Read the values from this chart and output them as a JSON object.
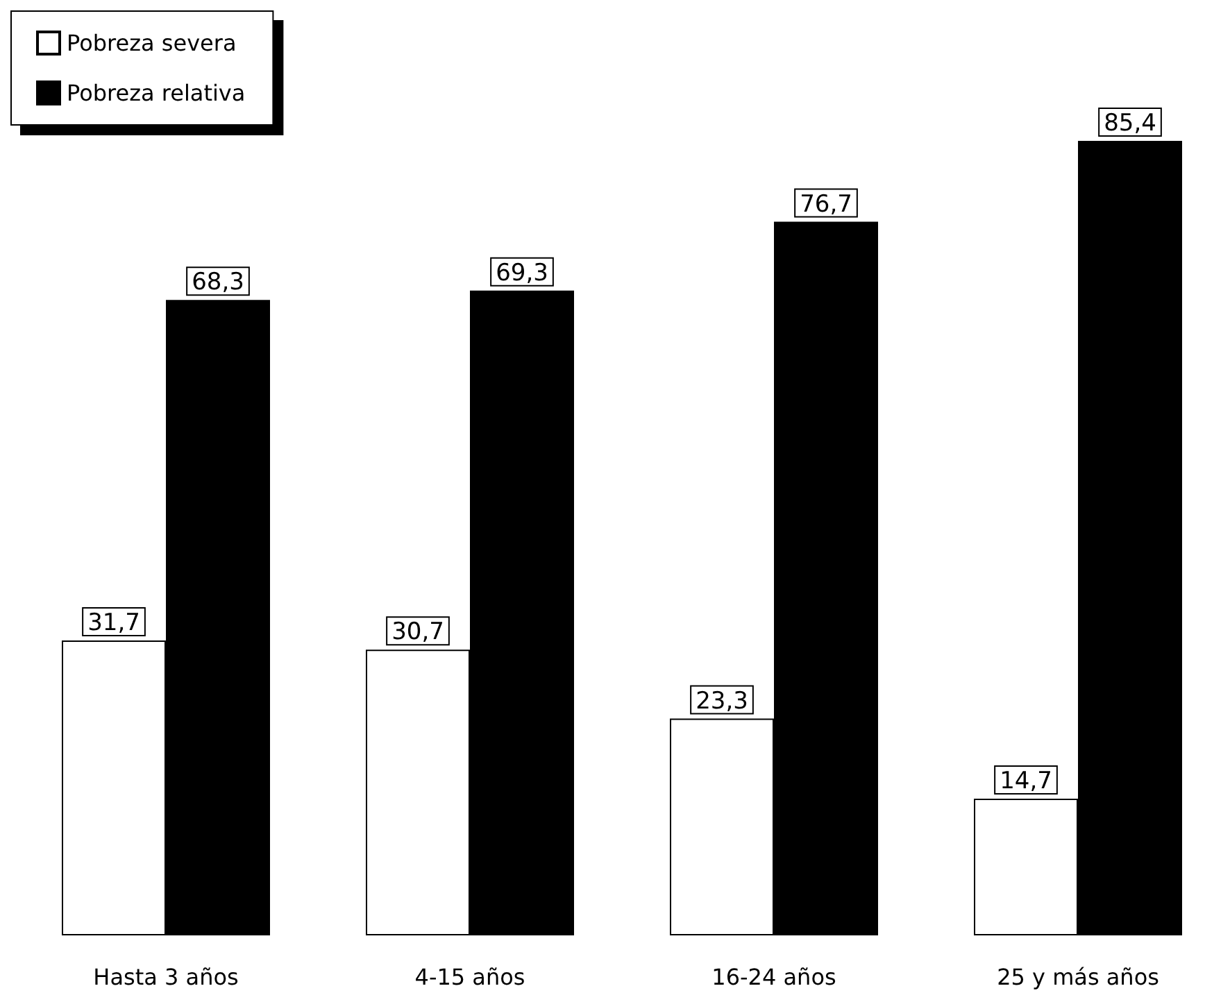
{
  "chart_data": {
    "type": "bar",
    "categories": [
      "Hasta 3 años",
      "4-15 años",
      "16-24 años",
      "25 y más años"
    ],
    "series": [
      {
        "name": "Pobreza severa",
        "color": "#ffffff",
        "values": [
          31.7,
          30.7,
          23.3,
          14.7
        ],
        "value_labels": [
          "31,7",
          "30,7",
          "23,3",
          "14,7"
        ]
      },
      {
        "name": "Pobreza relativa",
        "color": "#000000",
        "values": [
          68.3,
          69.3,
          76.7,
          85.4
        ],
        "value_labels": [
          "68,3",
          "69,3",
          "76,7",
          "85,4"
        ]
      }
    ],
    "legend": "top left"
  }
}
